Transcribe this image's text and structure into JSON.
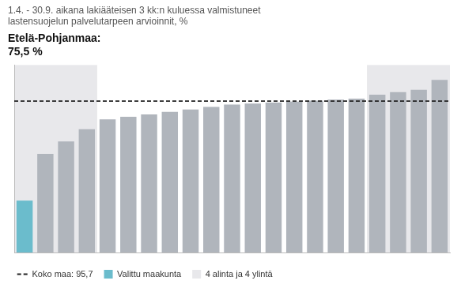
{
  "chart_data": {
    "type": "bar",
    "title": [
      "1.4. - 30.9. aikana lakiääteisen 3 kk:n kuluessa valmistuneet",
      "lastensuojelun palvelutarpeen arvioinnit, %"
    ],
    "annotations": [
      "Etelä-Pohjanmaa:",
      "75,5 %"
    ],
    "categories": [
      null,
      null,
      null,
      null,
      null,
      null,
      null,
      null,
      null,
      null,
      null,
      null,
      null,
      null,
      null,
      null,
      null,
      null,
      null,
      null,
      null
    ],
    "values": [
      75.5,
      85.0,
      87.5,
      90.0,
      92.0,
      92.5,
      93.0,
      93.5,
      94.0,
      94.5,
      95.0,
      95.2,
      95.4,
      95.6,
      95.8,
      96.0,
      96.2,
      97.0,
      97.5,
      98.0,
      100.0
    ],
    "colors": [
      "#6bbccc",
      "#b0b5bc",
      "#b0b5bc",
      "#b0b5bc",
      "#b0b5bc",
      "#b0b5bc",
      "#b0b5bc",
      "#b0b5bc",
      "#b0b5bc",
      "#b0b5bc",
      "#b0b5bc",
      "#b0b5bc",
      "#b0b5bc",
      "#b0b5bc",
      "#b0b5bc",
      "#b0b5bc",
      "#b0b5bc",
      "#b0b5bc",
      "#b0b5bc",
      "#b0b5bc",
      "#b0b5bc"
    ],
    "ylim": [
      65,
      103
    ],
    "tick_labels": false,
    "grid": false,
    "reference_line": {
      "value": 95.7,
      "label": "Koko maa: 95,7",
      "color": "#222222",
      "line_style": "dashed"
    },
    "selected": {
      "label": "Valittu maakunta",
      "color": "#6bbccc"
    },
    "highlight": {
      "label": "4 alinta ja 4 ylintä",
      "color": "#e8e8eb",
      "ranges": [
        [
          0,
          3
        ],
        [
          17,
          20
        ]
      ]
    },
    "legend": "bottom"
  }
}
